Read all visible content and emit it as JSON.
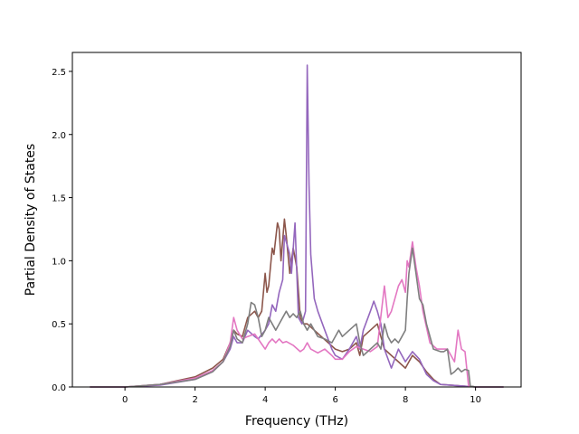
{
  "chart_data": {
    "type": "line",
    "xlabel": "Frequency (THz)",
    "ylabel": "Partial Density of States",
    "xlim": [
      -1.5,
      11.3
    ],
    "ylim": [
      0,
      2.65
    ],
    "xticks": [
      0,
      2,
      4,
      6,
      8,
      10
    ],
    "yticks": [
      0.0,
      0.5,
      1.0,
      1.5,
      2.0,
      2.5
    ],
    "grid": false,
    "legend": "none",
    "series": [
      {
        "color": "#8c564b",
        "points": [
          [
            -1.0,
            0
          ],
          [
            0,
            0
          ],
          [
            1.0,
            0.02
          ],
          [
            2.0,
            0.08
          ],
          [
            2.5,
            0.15
          ],
          [
            2.8,
            0.22
          ],
          [
            3.0,
            0.35
          ],
          [
            3.1,
            0.45
          ],
          [
            3.2,
            0.42
          ],
          [
            3.35,
            0.4
          ],
          [
            3.5,
            0.55
          ],
          [
            3.7,
            0.6
          ],
          [
            3.8,
            0.55
          ],
          [
            3.9,
            0.6
          ],
          [
            4.0,
            0.9
          ],
          [
            4.05,
            0.75
          ],
          [
            4.1,
            0.8
          ],
          [
            4.2,
            1.1
          ],
          [
            4.25,
            1.05
          ],
          [
            4.35,
            1.3
          ],
          [
            4.4,
            1.25
          ],
          [
            4.45,
            1.0
          ],
          [
            4.55,
            1.33
          ],
          [
            4.6,
            1.2
          ],
          [
            4.7,
            0.9
          ],
          [
            4.8,
            1.1
          ],
          [
            4.9,
            0.95
          ],
          [
            5.0,
            0.55
          ],
          [
            5.1,
            0.5
          ],
          [
            5.2,
            0.5
          ],
          [
            5.4,
            0.45
          ],
          [
            5.6,
            0.4
          ],
          [
            5.8,
            0.35
          ],
          [
            6.0,
            0.3
          ],
          [
            6.2,
            0.28
          ],
          [
            6.4,
            0.3
          ],
          [
            6.6,
            0.35
          ],
          [
            6.7,
            0.25
          ],
          [
            6.8,
            0.4
          ],
          [
            7.0,
            0.45
          ],
          [
            7.2,
            0.5
          ],
          [
            7.4,
            0.3
          ],
          [
            7.6,
            0.25
          ],
          [
            7.8,
            0.2
          ],
          [
            8.0,
            0.15
          ],
          [
            8.2,
            0.25
          ],
          [
            8.4,
            0.2
          ],
          [
            8.6,
            0.12
          ],
          [
            8.8,
            0.06
          ],
          [
            9.0,
            0.02
          ],
          [
            9.5,
            0.01
          ],
          [
            10.0,
            0
          ],
          [
            10.8,
            0
          ]
        ]
      },
      {
        "color": "#9467bd",
        "points": [
          [
            -1.0,
            0
          ],
          [
            0,
            0
          ],
          [
            1.0,
            0.015
          ],
          [
            2.0,
            0.06
          ],
          [
            2.5,
            0.12
          ],
          [
            2.8,
            0.2
          ],
          [
            3.0,
            0.3
          ],
          [
            3.1,
            0.4
          ],
          [
            3.2,
            0.35
          ],
          [
            3.35,
            0.35
          ],
          [
            3.5,
            0.45
          ],
          [
            3.7,
            0.4
          ],
          [
            3.8,
            0.38
          ],
          [
            4.0,
            0.45
          ],
          [
            4.1,
            0.5
          ],
          [
            4.2,
            0.65
          ],
          [
            4.3,
            0.6
          ],
          [
            4.4,
            0.75
          ],
          [
            4.5,
            0.85
          ],
          [
            4.55,
            1.2
          ],
          [
            4.6,
            1.15
          ],
          [
            4.7,
            1.05
          ],
          [
            4.75,
            0.9
          ],
          [
            4.85,
            1.3
          ],
          [
            4.95,
            0.55
          ],
          [
            5.05,
            0.5
          ],
          [
            5.15,
            0.6
          ],
          [
            5.2,
            2.55
          ],
          [
            5.25,
            1.6
          ],
          [
            5.3,
            1.05
          ],
          [
            5.4,
            0.7
          ],
          [
            5.5,
            0.6
          ],
          [
            5.7,
            0.45
          ],
          [
            5.9,
            0.3
          ],
          [
            6.0,
            0.25
          ],
          [
            6.2,
            0.22
          ],
          [
            6.4,
            0.3
          ],
          [
            6.6,
            0.4
          ],
          [
            6.7,
            0.3
          ],
          [
            6.8,
            0.45
          ],
          [
            7.0,
            0.6
          ],
          [
            7.1,
            0.68
          ],
          [
            7.2,
            0.6
          ],
          [
            7.3,
            0.5
          ],
          [
            7.4,
            0.3
          ],
          [
            7.6,
            0.15
          ],
          [
            7.8,
            0.3
          ],
          [
            8.0,
            0.2
          ],
          [
            8.2,
            0.28
          ],
          [
            8.4,
            0.22
          ],
          [
            8.6,
            0.1
          ],
          [
            8.8,
            0.05
          ],
          [
            9.0,
            0.02
          ],
          [
            9.5,
            0.01
          ],
          [
            10.0,
            0
          ],
          [
            10.8,
            0
          ]
        ]
      },
      {
        "color": "#e377c2",
        "points": [
          [
            -1.0,
            0
          ],
          [
            0,
            0
          ],
          [
            1.0,
            0.02
          ],
          [
            2.0,
            0.07
          ],
          [
            2.5,
            0.13
          ],
          [
            2.8,
            0.2
          ],
          [
            3.0,
            0.35
          ],
          [
            3.1,
            0.55
          ],
          [
            3.2,
            0.45
          ],
          [
            3.35,
            0.38
          ],
          [
            3.5,
            0.4
          ],
          [
            3.7,
            0.42
          ],
          [
            3.8,
            0.38
          ],
          [
            4.0,
            0.3
          ],
          [
            4.1,
            0.35
          ],
          [
            4.2,
            0.38
          ],
          [
            4.3,
            0.35
          ],
          [
            4.4,
            0.38
          ],
          [
            4.5,
            0.35
          ],
          [
            4.6,
            0.36
          ],
          [
            4.8,
            0.33
          ],
          [
            5.0,
            0.28
          ],
          [
            5.1,
            0.3
          ],
          [
            5.2,
            0.35
          ],
          [
            5.3,
            0.3
          ],
          [
            5.5,
            0.27
          ],
          [
            5.7,
            0.3
          ],
          [
            5.9,
            0.25
          ],
          [
            6.0,
            0.22
          ],
          [
            6.2,
            0.22
          ],
          [
            6.4,
            0.28
          ],
          [
            6.6,
            0.32
          ],
          [
            6.8,
            0.3
          ],
          [
            7.0,
            0.28
          ],
          [
            7.2,
            0.32
          ],
          [
            7.4,
            0.8
          ],
          [
            7.5,
            0.55
          ],
          [
            7.6,
            0.6
          ],
          [
            7.7,
            0.7
          ],
          [
            7.8,
            0.8
          ],
          [
            7.9,
            0.85
          ],
          [
            8.0,
            0.75
          ],
          [
            8.05,
            1.0
          ],
          [
            8.1,
            0.95
          ],
          [
            8.2,
            1.15
          ],
          [
            8.3,
            0.95
          ],
          [
            8.4,
            0.8
          ],
          [
            8.5,
            0.6
          ],
          [
            8.7,
            0.35
          ],
          [
            8.9,
            0.3
          ],
          [
            9.1,
            0.3
          ],
          [
            9.2,
            0.3
          ],
          [
            9.3,
            0.25
          ],
          [
            9.4,
            0.2
          ],
          [
            9.5,
            0.45
          ],
          [
            9.6,
            0.3
          ],
          [
            9.7,
            0.28
          ],
          [
            9.8,
            0.01
          ],
          [
            10.0,
            0
          ],
          [
            10.8,
            0
          ]
        ]
      },
      {
        "color": "#7f7f7f",
        "points": [
          [
            -1.0,
            0
          ],
          [
            0,
            0
          ],
          [
            1.0,
            0.02
          ],
          [
            2.0,
            0.06
          ],
          [
            2.5,
            0.12
          ],
          [
            2.8,
            0.2
          ],
          [
            3.0,
            0.32
          ],
          [
            3.1,
            0.45
          ],
          [
            3.2,
            0.38
          ],
          [
            3.35,
            0.35
          ],
          [
            3.5,
            0.5
          ],
          [
            3.6,
            0.67
          ],
          [
            3.7,
            0.65
          ],
          [
            3.8,
            0.55
          ],
          [
            3.9,
            0.4
          ],
          [
            4.0,
            0.45
          ],
          [
            4.1,
            0.55
          ],
          [
            4.2,
            0.5
          ],
          [
            4.3,
            0.45
          ],
          [
            4.4,
            0.5
          ],
          [
            4.5,
            0.55
          ],
          [
            4.6,
            0.6
          ],
          [
            4.7,
            0.55
          ],
          [
            4.8,
            0.58
          ],
          [
            4.9,
            0.55
          ],
          [
            5.0,
            0.6
          ],
          [
            5.1,
            0.5
          ],
          [
            5.2,
            0.45
          ],
          [
            5.3,
            0.5
          ],
          [
            5.4,
            0.45
          ],
          [
            5.5,
            0.4
          ],
          [
            5.7,
            0.38
          ],
          [
            5.9,
            0.35
          ],
          [
            6.0,
            0.4
          ],
          [
            6.1,
            0.45
          ],
          [
            6.2,
            0.4
          ],
          [
            6.4,
            0.45
          ],
          [
            6.6,
            0.5
          ],
          [
            6.7,
            0.35
          ],
          [
            6.8,
            0.25
          ],
          [
            7.0,
            0.3
          ],
          [
            7.2,
            0.35
          ],
          [
            7.3,
            0.3
          ],
          [
            7.4,
            0.5
          ],
          [
            7.5,
            0.4
          ],
          [
            7.6,
            0.35
          ],
          [
            7.7,
            0.38
          ],
          [
            7.8,
            0.35
          ],
          [
            7.9,
            0.4
          ],
          [
            8.0,
            0.45
          ],
          [
            8.05,
            0.7
          ],
          [
            8.1,
            0.9
          ],
          [
            8.2,
            1.1
          ],
          [
            8.3,
            0.9
          ],
          [
            8.4,
            0.7
          ],
          [
            8.5,
            0.65
          ],
          [
            8.6,
            0.5
          ],
          [
            8.8,
            0.3
          ],
          [
            9.0,
            0.28
          ],
          [
            9.1,
            0.28
          ],
          [
            9.2,
            0.3
          ],
          [
            9.3,
            0.1
          ],
          [
            9.4,
            0.12
          ],
          [
            9.5,
            0.15
          ],
          [
            9.6,
            0.12
          ],
          [
            9.7,
            0.14
          ],
          [
            9.8,
            0.13
          ],
          [
            9.85,
            0.01
          ],
          [
            10.0,
            0
          ],
          [
            10.8,
            0
          ]
        ]
      }
    ]
  }
}
